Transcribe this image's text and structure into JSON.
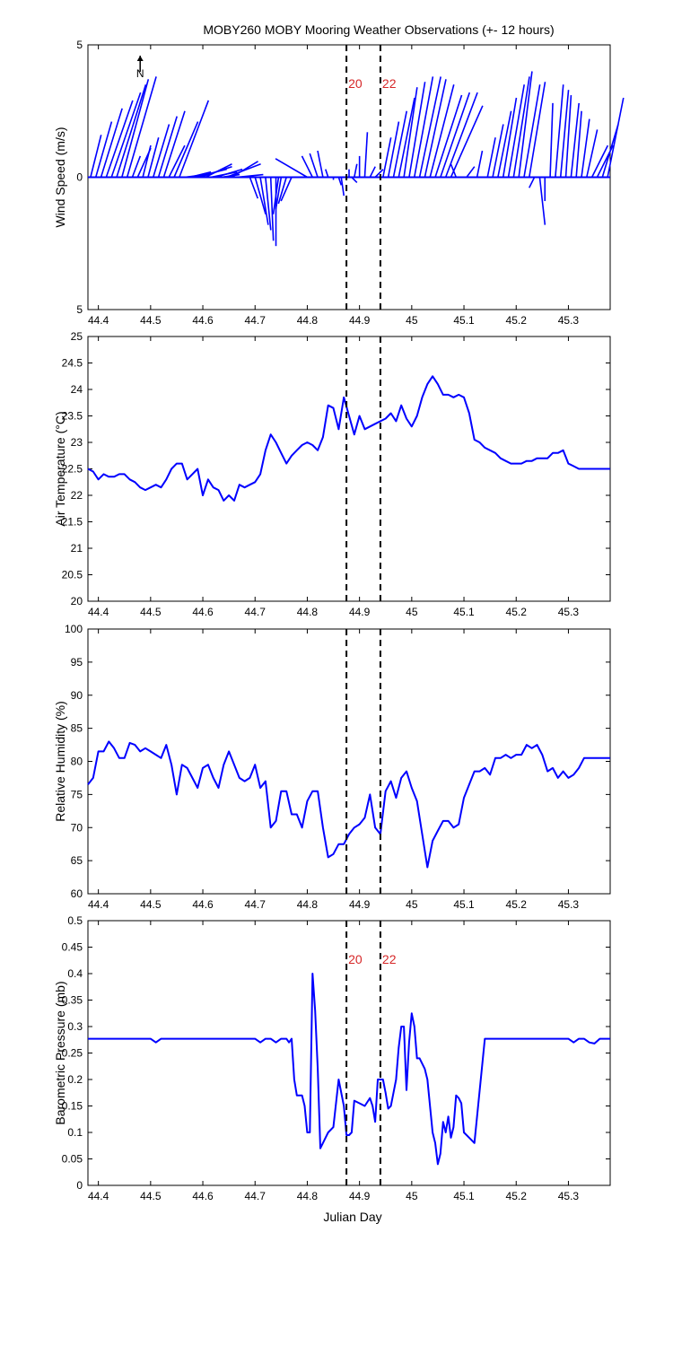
{
  "title": "MOBY260 MOBY Mooring Weather Observations (+- 12 hours)",
  "xlabel": "Julian Day",
  "north_label": "N",
  "colors": {
    "series": "#0000ff",
    "marker_label": "#d62728",
    "axis": "#000000",
    "background": "#ffffff"
  },
  "chart_data": [
    {
      "type": "line",
      "subtype": "wind-stick",
      "ylabel": "Wind Speed (m/s)",
      "xlim": [
        44.38,
        45.38
      ],
      "ylim": [
        -5,
        5
      ],
      "ytick_labels": [
        {
          "value": 5,
          "label": "5"
        },
        {
          "value": 0,
          "label": "0"
        },
        {
          "value": -5,
          "label": "5"
        }
      ],
      "xticks": [
        44.4,
        44.5,
        44.6,
        44.7,
        44.8,
        44.9,
        45,
        45.1,
        45.2,
        45.3
      ],
      "vlines": [
        44.875,
        44.94
      ],
      "vline_labels": [
        "20",
        "22"
      ],
      "series": [
        {
          "x": [
            44.385,
            44.395,
            44.405,
            44.415,
            44.425,
            44.435,
            44.445,
            44.455,
            44.465,
            44.475,
            44.485,
            44.495,
            44.505,
            44.515,
            44.525,
            44.535,
            44.545,
            44.555,
            44.565,
            44.575,
            44.585,
            44.595,
            44.605,
            44.615,
            44.625,
            44.635,
            44.645,
            44.655,
            44.665,
            44.675,
            44.69,
            44.7,
            44.71,
            44.72,
            44.73,
            44.74,
            44.745,
            44.75,
            44.76,
            44.77,
            44.8,
            44.81,
            44.82,
            44.83,
            44.84,
            44.85,
            44.86,
            44.865,
            44.88,
            44.885,
            44.89,
            44.9,
            44.91,
            44.92,
            44.93,
            44.945,
            44.955,
            44.965,
            44.975,
            44.985,
            44.995,
            45.005,
            45.015,
            45.025,
            45.035,
            45.045,
            45.055,
            45.065,
            45.075,
            45.085,
            45.105,
            45.125,
            45.145,
            45.155,
            45.165,
            45.175,
            45.185,
            45.195,
            45.205,
            45.215,
            45.225,
            45.235,
            45.245,
            45.255,
            45.265,
            45.275,
            45.285,
            45.295,
            45.305,
            45.315,
            45.325,
            45.335,
            45.345,
            45.355,
            45.365,
            45.375
          ],
          "u": [
            0.4,
            0.6,
            0.8,
            1.0,
            1.1,
            1.1,
            1.0,
            1.1,
            0.3,
            0.5,
            0.3,
            0.4,
            0.6,
            0.7,
            0.8,
            0.6,
            0.9,
            1.1,
            0.8,
            0.8,
            1.2,
            1.2,
            1.0,
            1.0,
            1.0,
            0.7,
            1.3,
            1.0,
            1.0,
            1.0,
            0.3,
            0.4,
            0.3,
            0.2,
            0.1,
            0.0,
            -0.2,
            -0.2,
            -0.3,
            -0.4,
            -1.2,
            -0.4,
            -0.3,
            -0.2,
            -0.1,
            0.0,
            0.1,
            0.1,
            0.0,
            0.2,
            0.1,
            0.0,
            0.1,
            0.2,
            0.3,
            0.3,
            0.4,
            0.5,
            0.6,
            0.5,
            0.6,
            0.7,
            0.8,
            0.8,
            0.9,
            1.0,
            1.1,
            1.2,
            1.2,
            -0.2,
            0.3,
            0.2,
            0.3,
            0.4,
            0.5,
            0.5,
            0.6,
            0.6,
            0.5,
            0.6,
            0.6,
            -0.2,
            0.2,
            0.0,
            0.1,
            0.3,
            0.3,
            0.2,
            0.3,
            0.2,
            0.3,
            0.4,
            0.6,
            0.6,
            0.6,
            0.6
          ],
          "v": [
            1.6,
            2.1,
            2.6,
            2.9,
            3.2,
            3.5,
            3.7,
            3.8,
            0.8,
            1.1,
            1.2,
            1.5,
            2.0,
            2.3,
            2.5,
            1.2,
            2.1,
            2.9,
            0.1,
            0.2,
            0.3,
            0.4,
            0.5,
            0.2,
            0.3,
            0.1,
            0.5,
            0.6,
            0.1,
            0.0,
            -0.8,
            -1.4,
            -1.8,
            -2.0,
            -2.4,
            -2.6,
            -1.4,
            -1.2,
            -1.0,
            -0.9,
            0.7,
            0.8,
            0.9,
            1.0,
            0.3,
            -0.1,
            -0.3,
            -0.7,
            0.3,
            -0.2,
            0.5,
            0.8,
            1.7,
            0.4,
            0.3,
            1.5,
            2.1,
            2.5,
            3.0,
            3.4,
            3.6,
            3.8,
            3.8,
            3.7,
            3.5,
            3.1,
            3.2,
            3.2,
            2.7,
            0.5,
            0.4,
            1.0,
            1.5,
            2.0,
            2.5,
            3.0,
            3.5,
            3.8,
            4.0,
            3.5,
            3.6,
            -0.4,
            -1.8,
            -0.9,
            2.8,
            3.5,
            3.3,
            3.1,
            2.8,
            2.5,
            2.2,
            1.8,
            1.2,
            1.2,
            2.0,
            3.0
          ]
        }
      ]
    },
    {
      "type": "line",
      "ylabel": "Air Temperature (°C)",
      "xlim": [
        44.38,
        45.38
      ],
      "ylim": [
        20,
        25
      ],
      "yticks": [
        20,
        20.5,
        21,
        21.5,
        22,
        22.5,
        23,
        23.5,
        24,
        24.5,
        25
      ],
      "xticks": [
        44.4,
        44.5,
        44.6,
        44.7,
        44.8,
        44.9,
        45,
        45.1,
        45.2,
        45.3
      ],
      "vlines": [
        44.875,
        44.94
      ],
      "series": [
        {
          "x": [
            44.38,
            44.39,
            44.4,
            44.41,
            44.42,
            44.43,
            44.44,
            44.45,
            44.46,
            44.47,
            44.48,
            44.49,
            44.5,
            44.51,
            44.52,
            44.53,
            44.54,
            44.55,
            44.56,
            44.57,
            44.58,
            44.59,
            44.6,
            44.61,
            44.62,
            44.63,
            44.64,
            44.65,
            44.66,
            44.67,
            44.68,
            44.69,
            44.7,
            44.71,
            44.72,
            44.73,
            44.74,
            44.75,
            44.76,
            44.77,
            44.78,
            44.79,
            44.8,
            44.81,
            44.82,
            44.83,
            44.84,
            44.85,
            44.86,
            44.87,
            44.88,
            44.89,
            44.9,
            44.91,
            44.92,
            44.93,
            44.94,
            44.95,
            44.96,
            44.97,
            44.98,
            44.99,
            45.0,
            45.01,
            45.02,
            45.03,
            45.04,
            45.05,
            45.06,
            45.07,
            45.08,
            45.09,
            45.1,
            45.11,
            45.12,
            45.13,
            45.14,
            45.15,
            45.16,
            45.17,
            45.18,
            45.19,
            45.2,
            45.21,
            45.22,
            45.23,
            45.24,
            45.25,
            45.26,
            45.27,
            45.28,
            45.29,
            45.3,
            45.31,
            45.32,
            45.33,
            45.34,
            45.35,
            45.36,
            45.37,
            45.38
          ],
          "y": [
            22.5,
            22.45,
            22.3,
            22.4,
            22.35,
            22.35,
            22.4,
            22.4,
            22.3,
            22.25,
            22.15,
            22.1,
            22.15,
            22.2,
            22.15,
            22.3,
            22.5,
            22.6,
            22.6,
            22.3,
            22.4,
            22.5,
            22.0,
            22.3,
            22.15,
            22.1,
            21.9,
            22.0,
            21.9,
            22.2,
            22.15,
            22.2,
            22.25,
            22.4,
            22.85,
            23.15,
            23.0,
            22.8,
            22.6,
            22.75,
            22.85,
            22.95,
            23.0,
            22.95,
            22.85,
            23.1,
            23.7,
            23.65,
            23.25,
            23.85,
            23.5,
            23.15,
            23.5,
            23.25,
            23.3,
            23.35,
            23.4,
            23.45,
            23.55,
            23.4,
            23.7,
            23.45,
            23.3,
            23.5,
            23.85,
            24.1,
            24.25,
            24.1,
            23.9,
            23.9,
            23.85,
            23.9,
            23.85,
            23.55,
            23.05,
            23.0,
            22.9,
            22.85,
            22.8,
            22.7,
            22.65,
            22.6,
            22.6,
            22.6,
            22.65,
            22.65,
            22.7,
            22.7,
            22.7,
            22.8,
            22.8,
            22.85,
            22.6,
            22.55,
            22.5,
            22.5,
            22.5,
            22.5,
            22.5,
            22.5,
            22.5
          ]
        }
      ]
    },
    {
      "type": "line",
      "ylabel": "Relative Humidity (%)",
      "xlim": [
        44.38,
        45.38
      ],
      "ylim": [
        60,
        100
      ],
      "yticks": [
        60,
        65,
        70,
        75,
        80,
        85,
        90,
        95,
        100
      ],
      "xticks": [
        44.4,
        44.5,
        44.6,
        44.7,
        44.8,
        44.9,
        45,
        45.1,
        45.2,
        45.3
      ],
      "vlines": [
        44.875,
        44.94
      ],
      "series": [
        {
          "x": [
            44.38,
            44.39,
            44.4,
            44.41,
            44.42,
            44.43,
            44.44,
            44.45,
            44.46,
            44.47,
            44.48,
            44.49,
            44.5,
            44.51,
            44.52,
            44.53,
            44.54,
            44.55,
            44.56,
            44.57,
            44.58,
            44.59,
            44.6,
            44.61,
            44.62,
            44.63,
            44.64,
            44.65,
            44.66,
            44.67,
            44.68,
            44.69,
            44.7,
            44.71,
            44.72,
            44.73,
            44.74,
            44.75,
            44.76,
            44.77,
            44.78,
            44.79,
            44.8,
            44.81,
            44.82,
            44.83,
            44.84,
            44.85,
            44.86,
            44.87,
            44.88,
            44.89,
            44.9,
            44.91,
            44.92,
            44.93,
            44.94,
            44.95,
            44.96,
            44.97,
            44.98,
            44.99,
            45.0,
            45.01,
            45.02,
            45.03,
            45.04,
            45.05,
            45.06,
            45.07,
            45.08,
            45.09,
            45.1,
            45.11,
            45.12,
            45.13,
            45.14,
            45.15,
            45.16,
            45.17,
            45.18,
            45.19,
            45.2,
            45.21,
            45.22,
            45.23,
            45.24,
            45.25,
            45.26,
            45.27,
            45.28,
            45.29,
            45.3,
            45.31,
            45.32,
            45.33,
            45.34,
            45.35,
            45.36,
            45.37,
            45.38
          ],
          "y": [
            76.5,
            77.5,
            81.5,
            81.5,
            83.0,
            82.0,
            80.5,
            80.5,
            82.8,
            82.5,
            81.5,
            82.0,
            81.5,
            81.0,
            80.5,
            82.5,
            79.5,
            75.0,
            79.5,
            79.0,
            77.5,
            76.0,
            79.0,
            79.5,
            77.5,
            76.0,
            79.5,
            81.5,
            79.5,
            77.5,
            77.0,
            77.5,
            79.5,
            76.0,
            77.0,
            70.0,
            71.0,
            75.5,
            75.5,
            72.0,
            72.0,
            70.0,
            74.0,
            75.5,
            75.5,
            70.0,
            65.5,
            66.0,
            67.5,
            67.5,
            69.0,
            70.0,
            70.5,
            71.5,
            75.0,
            70.0,
            69.0,
            75.5,
            77.0,
            74.5,
            77.5,
            78.5,
            76.0,
            74.0,
            69.0,
            64.0,
            68.0,
            69.5,
            71.0,
            71.0,
            70.0,
            70.5,
            74.5,
            76.5,
            78.5,
            78.5,
            79.0,
            78.0,
            80.5,
            80.5,
            81.0,
            80.5,
            81.0,
            81.0,
            82.5,
            82.0,
            82.5,
            81.0,
            78.5,
            79.0,
            77.5,
            78.5,
            77.5,
            78.0,
            79.0,
            80.5,
            80.5,
            80.5,
            80.5,
            80.5,
            80.5
          ]
        }
      ]
    },
    {
      "type": "line",
      "ylabel": "Barometric Pressure (mb)",
      "xlim": [
        44.38,
        45.38
      ],
      "ylim": [
        0,
        0.5
      ],
      "yticks": [
        0,
        0.05,
        0.1,
        0.15,
        0.2,
        0.25,
        0.3,
        0.35,
        0.4,
        0.45,
        0.5
      ],
      "xticks": [
        44.4,
        44.5,
        44.6,
        44.7,
        44.8,
        44.9,
        45,
        45.1,
        45.2,
        45.3
      ],
      "vlines": [
        44.875,
        44.94
      ],
      "vline_labels": [
        "20",
        "22"
      ],
      "series": [
        {
          "x": [
            44.38,
            44.5,
            44.51,
            44.52,
            44.6,
            44.7,
            44.71,
            44.72,
            44.73,
            44.74,
            44.75,
            44.76,
            44.765,
            44.77,
            44.775,
            44.78,
            44.785,
            44.79,
            44.795,
            44.8,
            44.805,
            44.81,
            44.815,
            44.82,
            44.825,
            44.83,
            44.84,
            44.85,
            44.86,
            44.87,
            44.875,
            44.88,
            44.885,
            44.89,
            44.9,
            44.91,
            44.92,
            44.925,
            44.93,
            44.935,
            44.94,
            44.945,
            44.95,
            44.955,
            44.96,
            44.965,
            44.97,
            44.975,
            44.98,
            44.985,
            44.99,
            44.995,
            45.0,
            45.005,
            45.01,
            45.015,
            45.02,
            45.025,
            45.03,
            45.035,
            45.04,
            45.045,
            45.05,
            45.055,
            45.06,
            45.065,
            45.07,
            45.075,
            45.08,
            45.085,
            45.09,
            45.095,
            45.1,
            45.11,
            45.12,
            45.14,
            45.15,
            45.2,
            45.3,
            45.31,
            45.32,
            45.33,
            45.34,
            45.35,
            45.36,
            45.37,
            45.38
          ],
          "y": [
            0.277,
            0.277,
            0.27,
            0.277,
            0.277,
            0.277,
            0.27,
            0.277,
            0.277,
            0.27,
            0.277,
            0.277,
            0.27,
            0.277,
            0.2,
            0.17,
            0.17,
            0.17,
            0.15,
            0.1,
            0.1,
            0.4,
            0.33,
            0.22,
            0.07,
            0.08,
            0.1,
            0.11,
            0.2,
            0.15,
            0.095,
            0.095,
            0.1,
            0.16,
            0.155,
            0.15,
            0.165,
            0.15,
            0.12,
            0.2,
            0.2,
            0.2,
            0.175,
            0.145,
            0.15,
            0.175,
            0.2,
            0.26,
            0.3,
            0.3,
            0.18,
            0.27,
            0.325,
            0.3,
            0.24,
            0.24,
            0.23,
            0.22,
            0.2,
            0.15,
            0.1,
            0.08,
            0.04,
            0.06,
            0.12,
            0.1,
            0.13,
            0.09,
            0.11,
            0.17,
            0.165,
            0.155,
            0.1,
            0.09,
            0.08,
            0.277,
            0.277,
            0.277,
            0.277,
            0.27,
            0.277,
            0.277,
            0.27,
            0.268,
            0.277,
            0.277,
            0.277
          ]
        }
      ]
    }
  ]
}
